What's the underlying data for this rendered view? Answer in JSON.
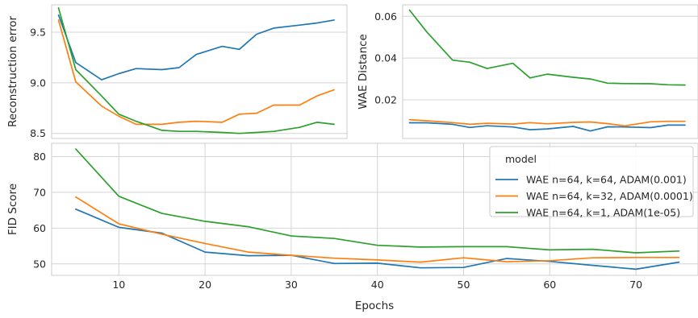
{
  "chart_data": [
    {
      "id": "recon",
      "type": "line",
      "title": "",
      "xlabel": "",
      "ylabel": "Reconstruction error",
      "x": [
        3,
        5,
        8,
        10,
        12,
        15,
        17,
        19,
        22,
        24,
        26,
        28,
        31,
        33,
        35
      ],
      "xlim": [
        2.2,
        36.5
      ],
      "ylim": [
        8.45,
        9.77
      ],
      "yticks": [
        8.5,
        9.0,
        9.5
      ],
      "ytick_labels": [
        "8.5",
        "9.0",
        "9.5"
      ],
      "grid": true,
      "series": [
        {
          "name": "WAE n=64, k=64, ADAM(0.001)",
          "color": "#1f77b4",
          "values": [
            9.67,
            9.2,
            9.03,
            9.09,
            9.14,
            9.13,
            9.15,
            9.28,
            9.36,
            9.33,
            9.48,
            9.54,
            9.57,
            9.59,
            9.62
          ]
        },
        {
          "name": "WAE n=64, k=32, ADAM(0.0001)",
          "color": "#ff7f0e",
          "values": [
            9.62,
            9.01,
            8.77,
            8.67,
            8.59,
            8.59,
            8.61,
            8.62,
            8.61,
            8.69,
            8.7,
            8.78,
            8.78,
            8.87,
            8.93
          ]
        },
        {
          "name": "WAE n=64, k=1, ADAM(1e-05)",
          "color": "#2ca02c",
          "values": [
            9.74,
            9.13,
            8.87,
            8.69,
            8.62,
            8.53,
            8.52,
            8.52,
            8.51,
            8.5,
            8.51,
            8.52,
            8.56,
            8.61,
            8.59
          ]
        }
      ]
    },
    {
      "id": "wae",
      "type": "line",
      "title": "",
      "xlabel": "",
      "ylabel": "WAE Distance",
      "x": [
        3,
        5,
        8,
        10,
        12,
        15,
        17,
        19,
        22,
        24,
        26,
        28,
        31,
        33,
        35
      ],
      "xlim": [
        2.2,
        36.5
      ],
      "ylim": [
        0.0015,
        0.0655
      ],
      "yticks": [
        0.02,
        0.04,
        0.06
      ],
      "ytick_labels": [
        "0.02",
        "0.04",
        "0.06"
      ],
      "grid": true,
      "series": [
        {
          "name": "WAE n=64, k=64, ADAM(0.001)",
          "color": "#1f77b4",
          "values": [
            0.009,
            0.009,
            0.0083,
            0.0068,
            0.0076,
            0.007,
            0.0057,
            0.0061,
            0.0073,
            0.0051,
            0.0071,
            0.007,
            0.0067,
            0.0079,
            0.0079
          ]
        },
        {
          "name": "WAE n=64, k=32, ADAM(0.0001)",
          "color": "#ff7f0e",
          "values": [
            0.0105,
            0.01,
            0.0091,
            0.0083,
            0.0088,
            0.0084,
            0.0091,
            0.0085,
            0.0092,
            0.0094,
            0.0086,
            0.0075,
            0.0095,
            0.0097,
            0.0097
          ]
        },
        {
          "name": "WAE n=64, k=1, ADAM(1e-05)",
          "color": "#2ca02c",
          "values": [
            0.063,
            0.0525,
            0.039,
            0.038,
            0.035,
            0.0375,
            0.0305,
            0.0323,
            0.0308,
            0.03,
            0.028,
            0.0278,
            0.0277,
            0.0272,
            0.0271
          ]
        }
      ]
    },
    {
      "id": "fid",
      "type": "line",
      "title": "",
      "xlabel": "Epochs",
      "ylabel": "FID Score",
      "x": [
        5,
        10,
        15,
        20,
        25,
        30,
        35,
        40,
        45,
        50,
        55,
        60,
        65,
        70,
        75
      ],
      "xlim": [
        2.2,
        77.2
      ],
      "ylim": [
        46.8,
        83.7
      ],
      "xticks": [
        10,
        20,
        30,
        40,
        50,
        60,
        70
      ],
      "xtick_labels": [
        "10",
        "20",
        "30",
        "40",
        "50",
        "60",
        "70"
      ],
      "yticks": [
        50,
        60,
        70,
        80
      ],
      "ytick_labels": [
        "50",
        "60",
        "70",
        "80"
      ],
      "grid": true,
      "legend": "upper right",
      "legend_title": "model",
      "series": [
        {
          "name": "WAE n=64, k=64, ADAM(0.001)",
          "color": "#1f77b4",
          "values": [
            65.3,
            60.2,
            58.6,
            53.3,
            52.3,
            52.4,
            50.1,
            50.2,
            48.9,
            49.0,
            51.5,
            50.7,
            49.6,
            48.5,
            50.5
          ]
        },
        {
          "name": "WAE n=64, k=32, ADAM(0.0001)",
          "color": "#ff7f0e",
          "values": [
            68.7,
            61.2,
            58.3,
            55.7,
            53.3,
            52.4,
            51.6,
            51.1,
            50.5,
            51.7,
            50.6,
            50.9,
            51.7,
            51.8,
            51.8
          ]
        },
        {
          "name": "WAE n=64, k=1, ADAM(1e-05)",
          "color": "#2ca02c",
          "values": [
            82.1,
            68.9,
            64.1,
            61.9,
            60.4,
            57.8,
            57.1,
            55.2,
            54.7,
            54.8,
            54.8,
            53.9,
            54.1,
            53.1,
            53.6
          ]
        }
      ]
    }
  ]
}
